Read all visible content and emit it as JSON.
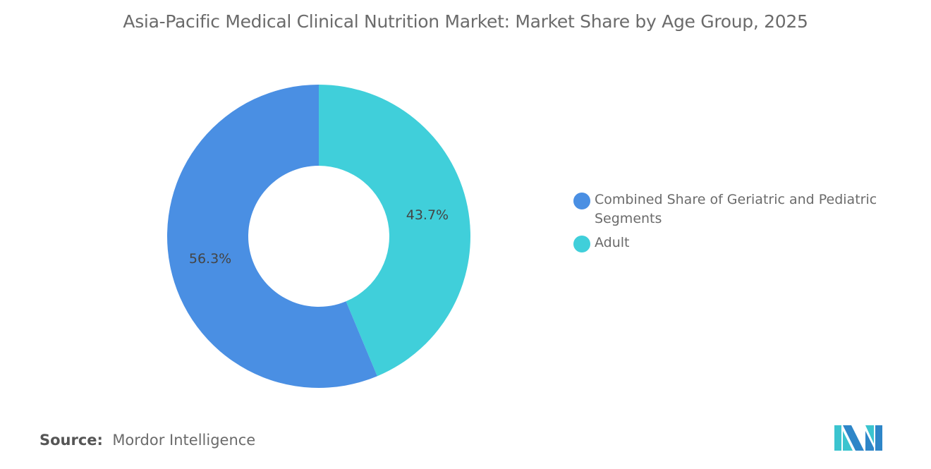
{
  "title": "Asia-Pacific Medical Clinical Nutrition Market: Market Share by Age Group, 2025",
  "chart_data": {
    "type": "pie",
    "donut": true,
    "title": "Asia-Pacific Medical Clinical Nutrition Market: Market Share by Age Group, 2025",
    "categories": [
      "Adult",
      "Combined Share of Geriatric and Pediatric Segments"
    ],
    "values": [
      43.7,
      56.3
    ],
    "labels": [
      "43.7%",
      "56.3%"
    ],
    "colors": [
      "#40CFDA",
      "#4A8FE3"
    ],
    "legend_placement": "right",
    "legend": [
      "Combined Share of Geriatric and Pediatric Segments",
      "Adult"
    ]
  },
  "legend": [
    {
      "label": "Combined Share of Geriatric and Pediatric Segments",
      "color": "#4A8FE3"
    },
    {
      "label": "Adult",
      "color": "#40CFDA"
    }
  ],
  "source": {
    "label": "Source:",
    "value": "Mordor Intelligence"
  }
}
